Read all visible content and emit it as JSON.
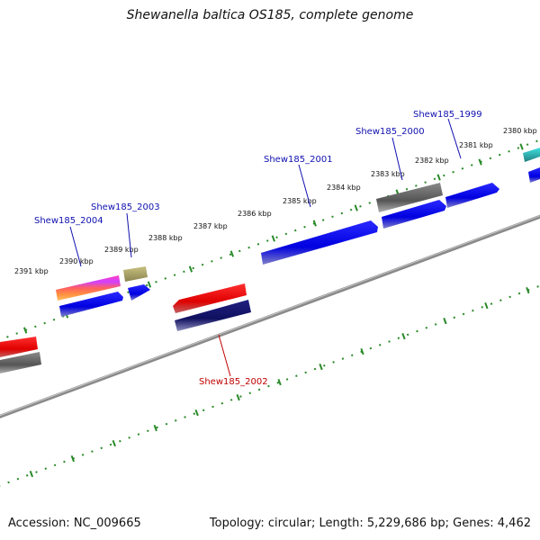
{
  "title": "Shewanella baltica OS185, complete genome",
  "footer": {
    "accession": "Accession: NC_009665",
    "summary": "Topology: circular; Length: 5,229,686 bp; Genes: 4,462"
  },
  "colors": {
    "backbone": "#8a8a8a",
    "tick_dots": "#2a8a2a",
    "label_forward": "#1010b0",
    "label_reverse": "#c00000",
    "forward_gene": "#0a0af0",
    "reverse_gene": "#e00000",
    "grey_feature": "#5a5a5a"
  },
  "scale_labels": [
    "2380 kbp",
    "2381 kbp",
    "2382 kbp",
    "2383 kbp",
    "2384 kbp",
    "2385 kbp",
    "2386 kbp",
    "2387 kbp",
    "2388 kbp",
    "2389 kbp",
    "2390 kbp",
    "2391 kbp"
  ],
  "gene_labels": [
    {
      "name": "Shew185_1999",
      "strand": "forward"
    },
    {
      "name": "Shew185_2000",
      "strand": "forward"
    },
    {
      "name": "Shew185_2001",
      "strand": "forward"
    },
    {
      "name": "Shew185_2003",
      "strand": "forward"
    },
    {
      "name": "Shew185_2004",
      "strand": "forward"
    },
    {
      "name": "Shew185_2002",
      "strand": "reverse"
    }
  ]
}
